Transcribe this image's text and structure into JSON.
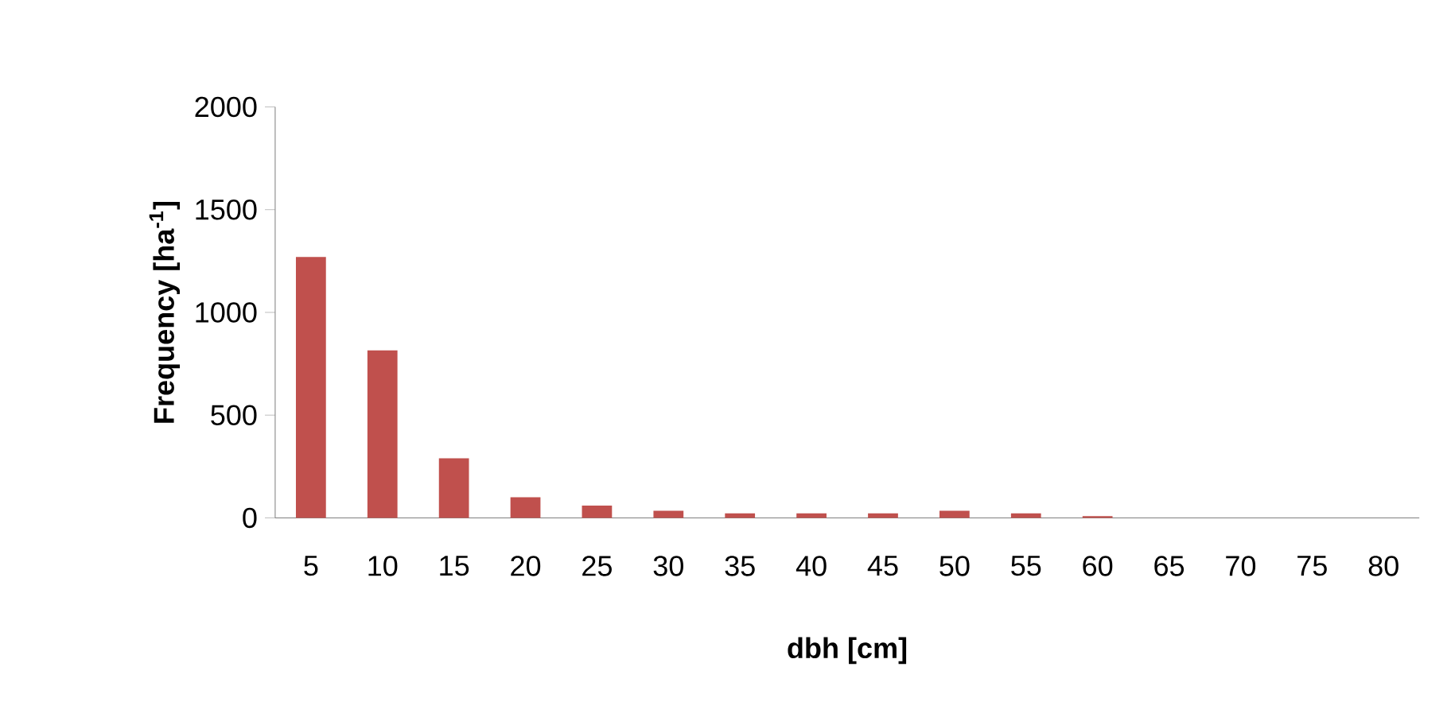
{
  "chart_data": {
    "type": "bar",
    "xlabel": "dbh [cm]",
    "ylabel": "Frequency [ha$^{-1}$]",
    "categories": [
      "5",
      "10",
      "15",
      "20",
      "25",
      "30",
      "35",
      "40",
      "45",
      "50",
      "55",
      "60",
      "65",
      "70",
      "75",
      "80"
    ],
    "values": [
      1270,
      815,
      290,
      100,
      60,
      35,
      22,
      22,
      22,
      35,
      22,
      8,
      0,
      0,
      0,
      0
    ],
    "color": "#c0504d",
    "ylim": [
      0,
      2000
    ],
    "yticks": [
      0,
      500,
      1000,
      1500,
      2000
    ],
    "grid": false
  }
}
